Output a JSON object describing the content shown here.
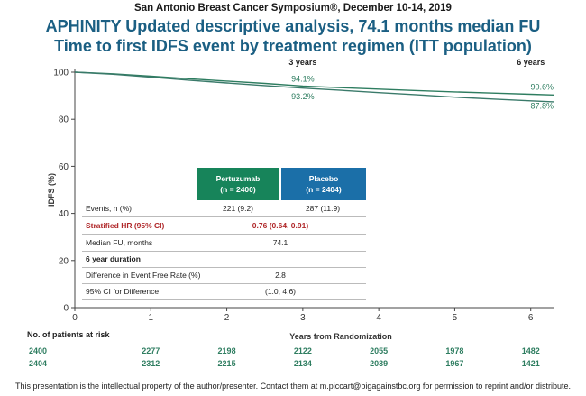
{
  "header": {
    "conference": "San Antonio Breast Cancer Symposium®, December 10-14, 2019",
    "title_line1": "APHINITY Updated descriptive analysis, 74.1 months median FU",
    "title_line2": "Time to first IDFS event by treatment regimen (ITT population)"
  },
  "chart_data": {
    "type": "line",
    "ylabel": "IDFS (%)",
    "xlabel": "Years from Randomization",
    "xlim": [
      0,
      6.3
    ],
    "ylim": [
      0,
      100
    ],
    "xticks": [
      0,
      1,
      2,
      3,
      4,
      5,
      6
    ],
    "yticks": [
      0,
      20,
      40,
      60,
      80,
      100
    ],
    "grid": false,
    "series": [
      {
        "name": "Pertuzumab",
        "color": "#2e7d60",
        "x": [
          0,
          0.5,
          1,
          1.5,
          2,
          2.5,
          3,
          3.5,
          4,
          4.5,
          5,
          5.5,
          6,
          6.3
        ],
        "y": [
          100,
          99.3,
          98.3,
          97.2,
          96.2,
          95.2,
          94.1,
          93.4,
          92.8,
          92.2,
          91.6,
          91.1,
          90.6,
          90.3
        ]
      },
      {
        "name": "Placebo",
        "color": "#3a7a6a",
        "x": [
          0,
          0.5,
          1,
          1.5,
          2,
          2.5,
          3,
          3.5,
          4,
          4.5,
          5,
          5.5,
          6,
          6.3
        ],
        "y": [
          100,
          99.1,
          97.9,
          96.6,
          95.4,
          94.3,
          93.2,
          92.3,
          91.3,
          90.4,
          89.4,
          88.6,
          87.8,
          87.4
        ]
      }
    ],
    "annotations": [
      {
        "text": "3 years",
        "x": 3,
        "y": 103,
        "bold": true
      },
      {
        "text": "6 years",
        "x": 6,
        "y": 103,
        "bold": true
      },
      {
        "text": "94.1%",
        "x": 3,
        "y": 96
      },
      {
        "text": "93.2%",
        "x": 3,
        "y": 88.5
      },
      {
        "text": "90.6%",
        "x": 6.3,
        "y": 92.5
      },
      {
        "text": "87.8%",
        "x": 6.3,
        "y": 84.5
      }
    ]
  },
  "table": {
    "headers": {
      "pertuzumab": "Pertuzumab",
      "pertuzumab_n": "(n = 2400)",
      "placebo": "Placebo",
      "placebo_n": "(n = 2404)"
    },
    "rows": {
      "events": {
        "label": "Events, n (%)",
        "pertuzumab": "221 (9.2)",
        "placebo": "287 (11.9)"
      },
      "hr": {
        "label": "Stratified HR (95% CI)",
        "value": "0.76 (0.64, 0.91)"
      },
      "median_fu": {
        "label": "Median FU, months",
        "value": "74.1"
      },
      "duration": {
        "label": "6 year duration"
      },
      "diff": {
        "label": "Difference in Event Free Rate (%)",
        "value": "2.8"
      },
      "ci": {
        "label": "95% CI for Difference",
        "value": "(1.0, 4.6)"
      }
    }
  },
  "risk": {
    "title": "No. of patients at risk",
    "pertuzumab": [
      "2400",
      "2277",
      "2198",
      "2122",
      "2055",
      "1978",
      "1482"
    ],
    "placebo": [
      "2404",
      "2312",
      "2215",
      "2134",
      "2039",
      "1967",
      "1421"
    ]
  },
  "footer": "This presentation is the intellectual property of the author/presenter. Contact them at m.piccart@bigagainstbc.org for permission to reprint and/or distribute."
}
